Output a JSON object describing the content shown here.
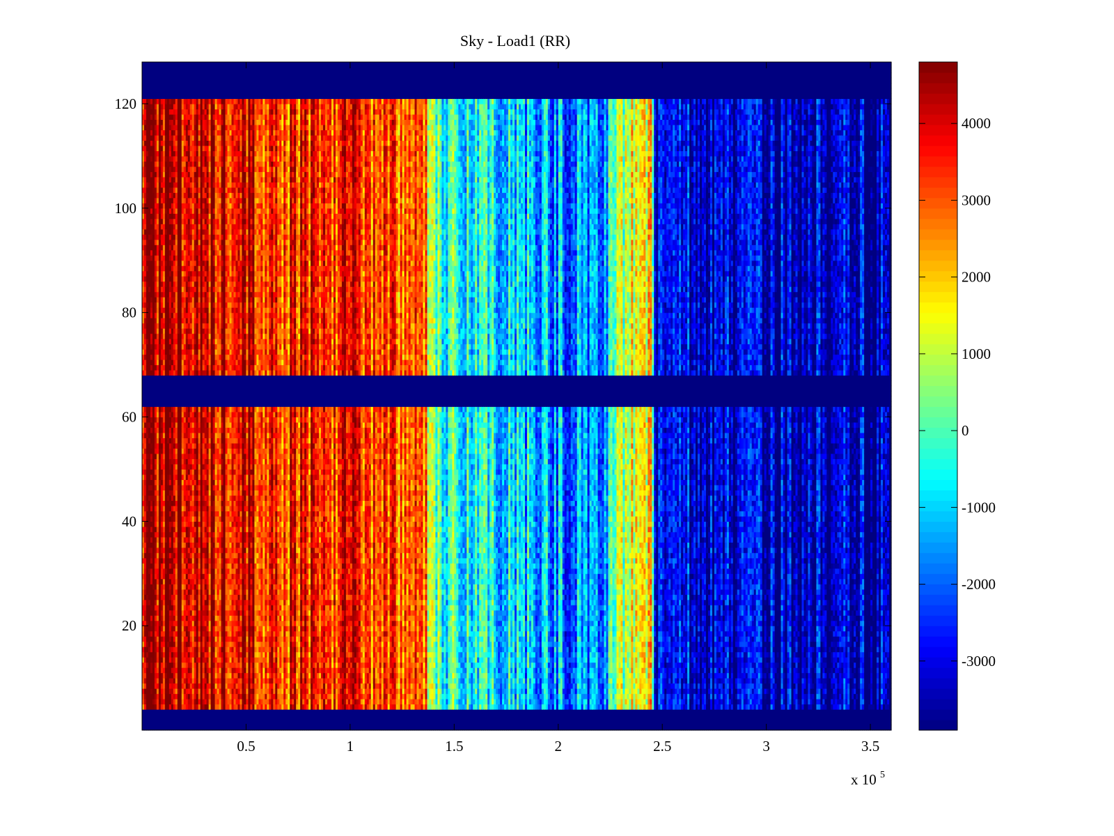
{
  "chart_data": {
    "type": "heatmap",
    "title": "Sky - Load1 (RR)",
    "xlabel": "",
    "ylabel": "",
    "x_exponent_label": "x 10",
    "x_exponent_power": "5",
    "xlim": [
      0,
      3.6
    ],
    "ylim": [
      0,
      128
    ],
    "x_ticks": [
      0.5,
      1,
      1.5,
      2,
      2.5,
      3,
      3.5
    ],
    "x_tick_labels": [
      "0.5",
      "1",
      "1.5",
      "2",
      "2.5",
      "3",
      "3.5"
    ],
    "y_ticks": [
      20,
      40,
      60,
      80,
      100,
      120
    ],
    "y_tick_labels": [
      "20",
      "40",
      "60",
      "80",
      "100",
      "120"
    ],
    "colormap": "jet",
    "clim": [
      -3900,
      4800
    ],
    "colorbar_ticks": [
      4000,
      3000,
      2000,
      1000,
      0,
      -1000,
      -2000,
      -3000
    ],
    "colorbar_tick_labels": [
      "4000",
      "3000",
      "2000",
      "1000",
      "0",
      "-1000",
      "-2000",
      "-3000"
    ],
    "masked_rows": [
      {
        "from": 0,
        "to": 4,
        "value": -3900
      },
      {
        "from": 62,
        "to": 68,
        "value": -3900
      },
      {
        "from": 121,
        "to": 128,
        "value": -3900
      }
    ],
    "row_range": [
      0,
      128
    ],
    "column_trend": [
      {
        "x": 0.0,
        "value": 4300
      },
      {
        "x": 0.5,
        "value": 4000
      },
      {
        "x": 0.6,
        "value": 3300
      },
      {
        "x": 1.0,
        "value": 3500
      },
      {
        "x": 1.35,
        "value": 2700
      },
      {
        "x": 1.45,
        "value": -300
      },
      {
        "x": 1.7,
        "value": -700
      },
      {
        "x": 2.0,
        "value": -1500
      },
      {
        "x": 2.2,
        "value": -1700
      },
      {
        "x": 2.35,
        "value": 1800
      },
      {
        "x": 2.45,
        "value": 1800
      },
      {
        "x": 2.47,
        "value": -3000
      },
      {
        "x": 2.7,
        "value": -3200
      },
      {
        "x": 3.6,
        "value": -3500
      }
    ]
  }
}
